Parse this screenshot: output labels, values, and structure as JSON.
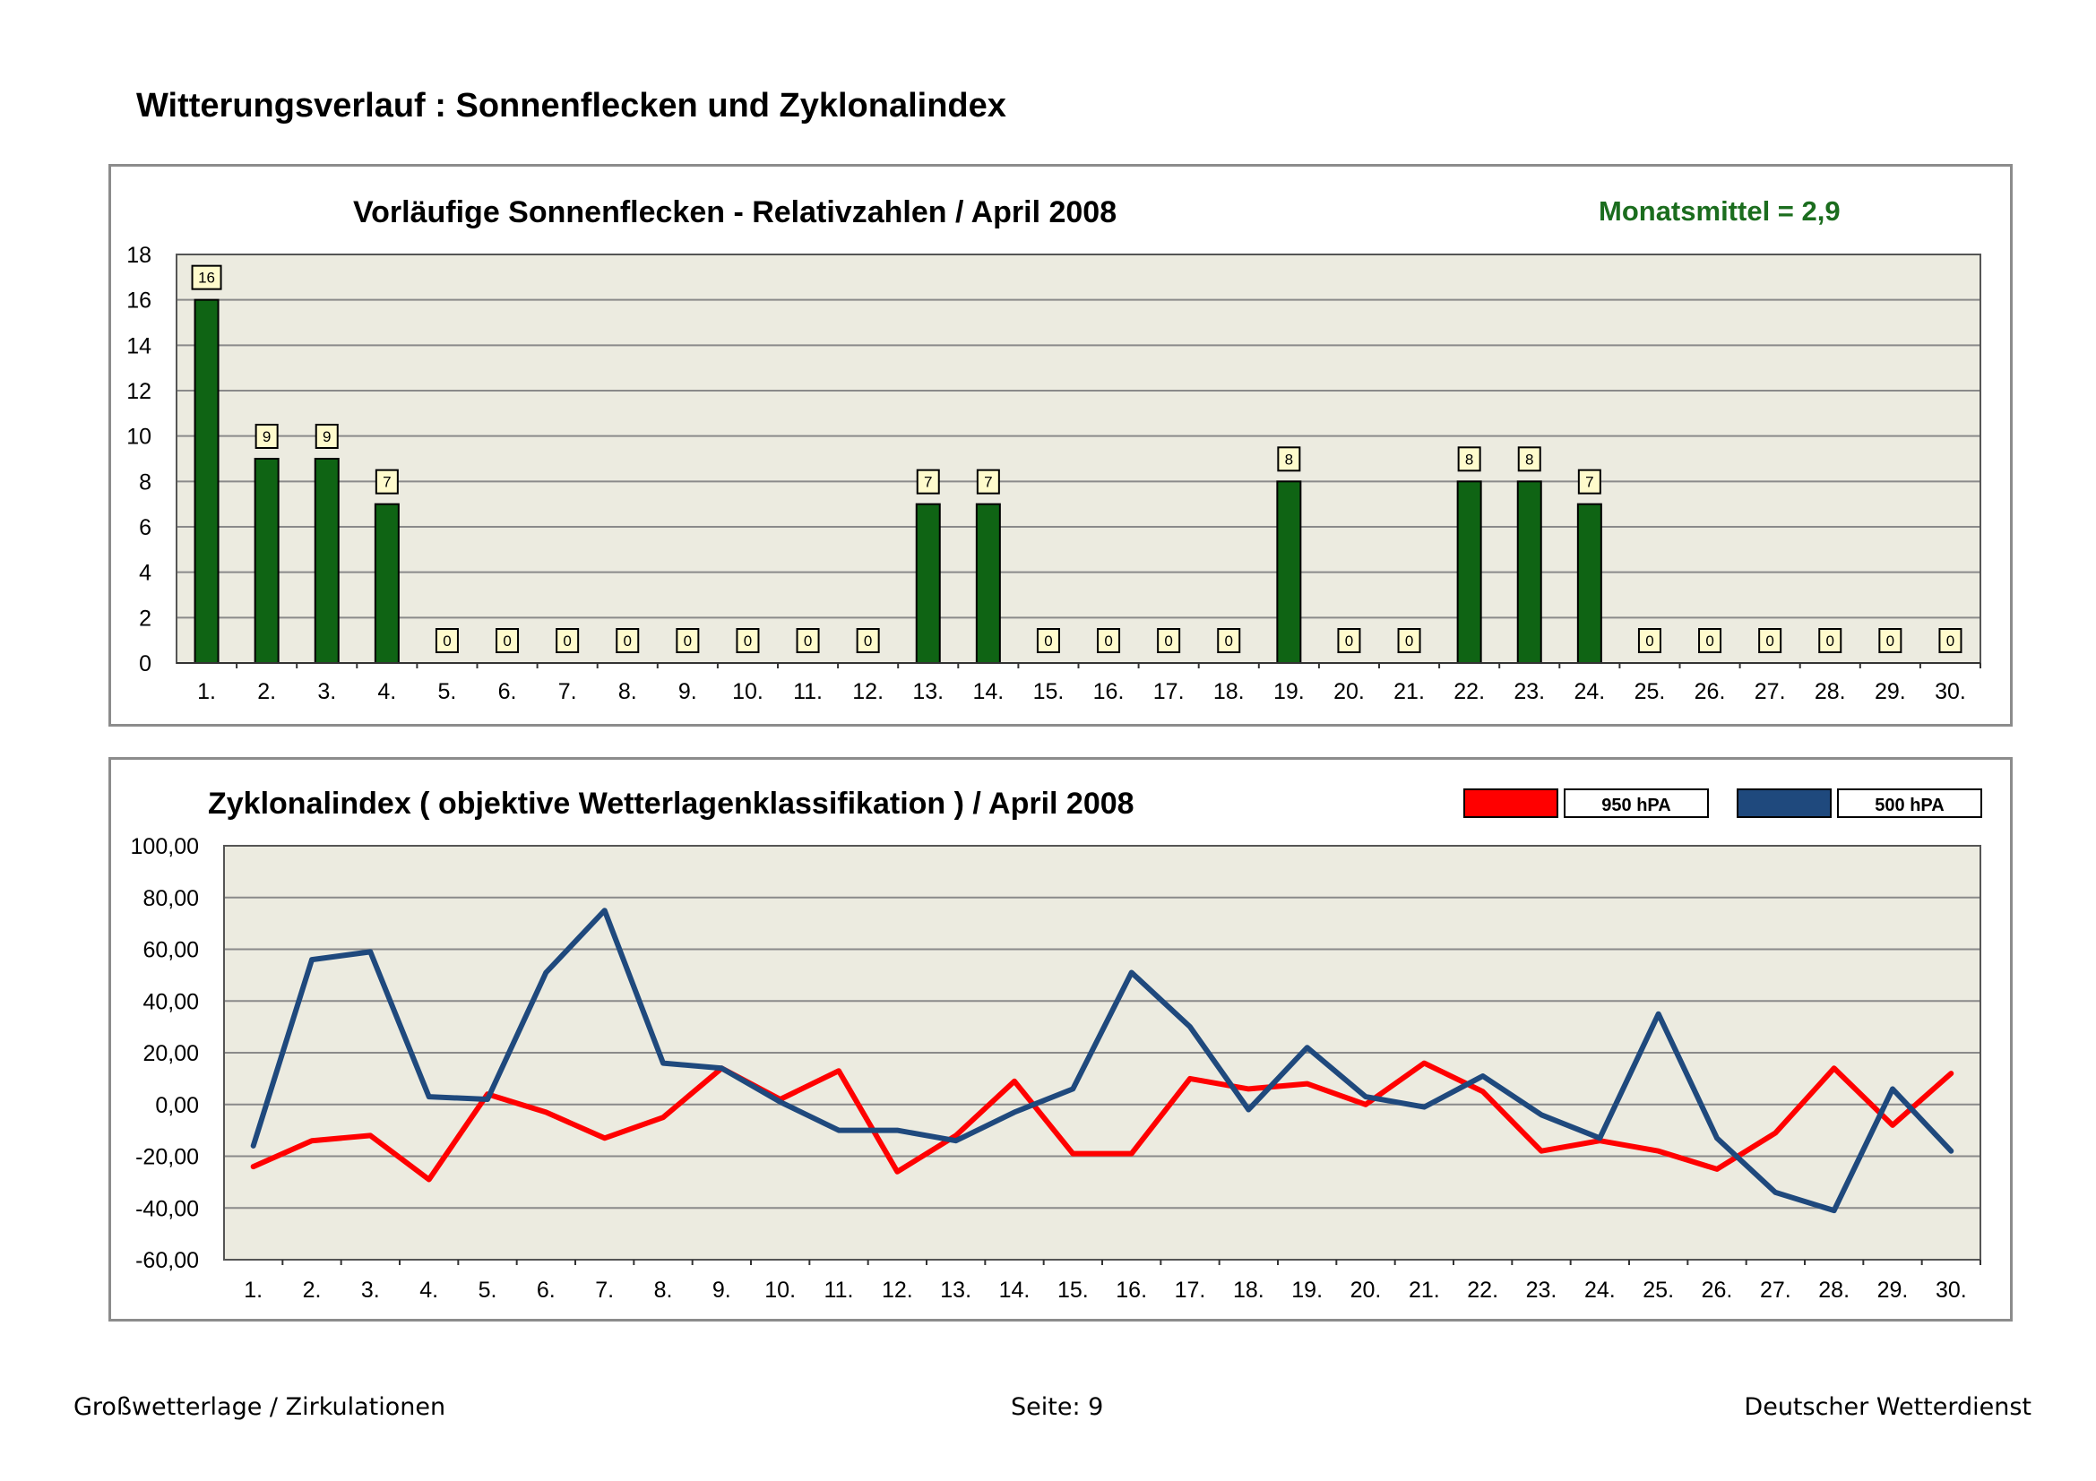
{
  "page": {
    "heading": "Witterungsverlauf : Sonnenflecken und Zyklonalindex",
    "footer_left": "Großwetterlage / Zirkulationen",
    "footer_center": "Seite: 9",
    "footer_right": "Deutscher Wetterdienst"
  },
  "colors": {
    "plot_bg": "#ecebe0",
    "grid": "#8a8a8a",
    "bar": "#0f6414",
    "label_box": "#fffbcc",
    "mean_text": "#1b6d1e",
    "line_950": "#ff0000",
    "line_500": "#1f497d"
  },
  "chart_data": [
    {
      "type": "bar",
      "title": "Vorläufige Sonnenflecken - Relativzahlen   /   April 2008",
      "annotation": "Monatsmittel = 2,9",
      "categories": [
        "1.",
        "2.",
        "3.",
        "4.",
        "5.",
        "6.",
        "7.",
        "8.",
        "9.",
        "10.",
        "11.",
        "12.",
        "13.",
        "14.",
        "15.",
        "16.",
        "17.",
        "18.",
        "19.",
        "20.",
        "21.",
        "22.",
        "23.",
        "24.",
        "25.",
        "26.",
        "27.",
        "28.",
        "29.",
        "30."
      ],
      "values": [
        16,
        9,
        9,
        7,
        0,
        0,
        0,
        0,
        0,
        0,
        0,
        0,
        7,
        7,
        0,
        0,
        0,
        0,
        8,
        0,
        0,
        8,
        8,
        7,
        0,
        0,
        0,
        0,
        0,
        0
      ],
      "ylim": [
        0,
        18
      ],
      "yticks": [
        0,
        2,
        4,
        6,
        8,
        10,
        12,
        14,
        16,
        18
      ],
      "ytick_labels": [
        "0",
        "2",
        "4",
        "6",
        "8",
        "10",
        "12",
        "14",
        "16",
        "18"
      ],
      "grid": true,
      "xlabel": "",
      "ylabel": ""
    },
    {
      "type": "line",
      "title": "Zyklonalindex  ( objektive Wetterlagenklassifikation )  /  April 2008",
      "categories": [
        "1.",
        "2.",
        "3.",
        "4.",
        "5.",
        "6.",
        "7.",
        "8.",
        "9.",
        "10.",
        "11.",
        "12.",
        "13.",
        "14.",
        "15.",
        "16.",
        "17.",
        "18.",
        "19.",
        "20.",
        "21.",
        "22.",
        "23.",
        "24.",
        "25.",
        "26.",
        "27.",
        "28.",
        "29.",
        "30."
      ],
      "series": [
        {
          "name": "950 hPA",
          "values": [
            -24,
            -14,
            -12,
            -29,
            4,
            -3,
            -13,
            -5,
            14,
            2,
            13,
            -26,
            -12,
            9,
            -19,
            -19,
            10,
            6,
            8,
            0,
            16,
            5,
            -18,
            -14,
            -18,
            -25,
            -11,
            14,
            -8,
            12
          ]
        },
        {
          "name": "500 hPA",
          "values": [
            -16,
            56,
            59,
            3,
            2,
            51,
            75,
            16,
            14,
            1,
            -10,
            -10,
            -14,
            -3,
            6,
            51,
            30,
            -2,
            22,
            3,
            -1,
            11,
            -4,
            -13,
            35,
            -13,
            -34,
            -41,
            6,
            -18
          ]
        }
      ],
      "ylim": [
        -60,
        100
      ],
      "yticks": [
        -60,
        -40,
        -20,
        0,
        20,
        40,
        60,
        80,
        100
      ],
      "ytick_labels": [
        "-60,00",
        "-40,00",
        "-20,00",
        "0,00",
        "20,00",
        "40,00",
        "60,00",
        "80,00",
        "100,00"
      ],
      "legend": "top-right",
      "grid": true,
      "xlabel": "",
      "ylabel": ""
    }
  ]
}
